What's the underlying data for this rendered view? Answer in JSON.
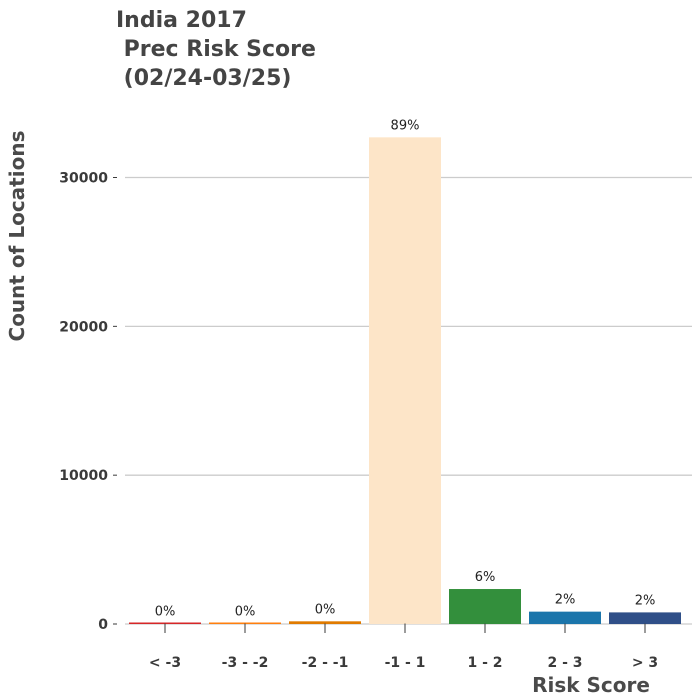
{
  "chart_data": {
    "type": "bar",
    "title": "India 2017\n Prec Risk Score\n (02/24-03/25)",
    "xlabel": "Risk Score",
    "ylabel": "Count of Locations",
    "categories": [
      "< -3",
      "-3 - -2",
      "-2 - -1",
      "-1 - 1",
      "1 - 2",
      "2 - 3",
      "> 3"
    ],
    "values": [
      30,
      30,
      180,
      32700,
      2350,
      830,
      780
    ],
    "data_labels": [
      "0%",
      "0%",
      "0%",
      "89%",
      "6%",
      "2%",
      "2%"
    ],
    "colors": [
      "#d62728",
      "#ff7f0e",
      "#e07b00",
      "#fde5c8",
      "#338f3c",
      "#1b75ab",
      "#2f4f88"
    ],
    "yticks": [
      0,
      10000,
      20000,
      30000
    ],
    "ylim": [
      0,
      34700
    ],
    "grid": true,
    "legend": "none"
  }
}
